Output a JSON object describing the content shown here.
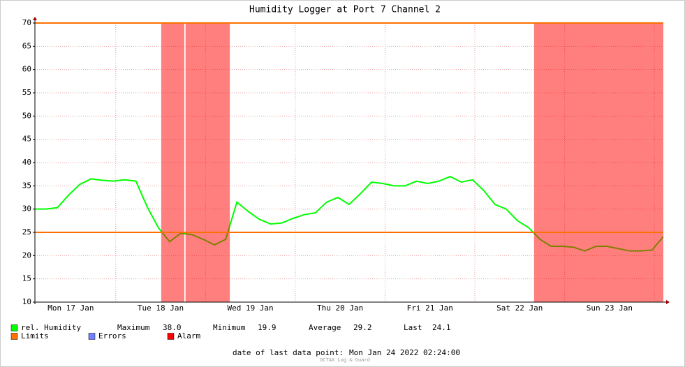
{
  "chart_data": {
    "type": "line",
    "title": "Humidity Logger at Port 7 Channel 2",
    "x": [
      "2022-01-17T02:24",
      "2022-01-17T05:24",
      "2022-01-17T08:24",
      "2022-01-17T11:24",
      "2022-01-17T14:24",
      "2022-01-17T17:24",
      "2022-01-17T20:24",
      "2022-01-17T23:24",
      "2022-01-18T02:24",
      "2022-01-18T05:24",
      "2022-01-18T08:24",
      "2022-01-18T11:24",
      "2022-01-18T14:24",
      "2022-01-18T17:24",
      "2022-01-18T20:24",
      "2022-01-18T23:24",
      "2022-01-19T02:24",
      "2022-01-19T05:24",
      "2022-01-19T08:24",
      "2022-01-19T11:24",
      "2022-01-19T14:24",
      "2022-01-19T17:24",
      "2022-01-19T20:24",
      "2022-01-19T23:24",
      "2022-01-20T02:24",
      "2022-01-20T05:24",
      "2022-01-20T08:24",
      "2022-01-20T11:24",
      "2022-01-20T14:24",
      "2022-01-20T17:24",
      "2022-01-20T20:24",
      "2022-01-20T23:24",
      "2022-01-21T02:24",
      "2022-01-21T05:24",
      "2022-01-21T08:24",
      "2022-01-21T11:24",
      "2022-01-21T14:24",
      "2022-01-21T17:24",
      "2022-01-21T20:24",
      "2022-01-21T23:24",
      "2022-01-22T02:24",
      "2022-01-22T05:24",
      "2022-01-22T08:24",
      "2022-01-22T11:24",
      "2022-01-22T14:24",
      "2022-01-22T17:24",
      "2022-01-22T20:24",
      "2022-01-22T23:24",
      "2022-01-23T02:24",
      "2022-01-23T05:24",
      "2022-01-23T08:24",
      "2022-01-23T11:24",
      "2022-01-23T14:24",
      "2022-01-23T17:24",
      "2022-01-23T20:24",
      "2022-01-23T23:24",
      "2022-01-24T02:24"
    ],
    "series": [
      {
        "name": "rel. Humidity",
        "color": "#00ff00",
        "values": [
          30.0,
          30.0,
          30.3,
          33,
          35.3,
          36.5,
          36.2,
          36,
          36.3,
          36,
          30.5,
          26,
          23,
          24.8,
          24.5,
          23.5,
          22.3,
          23.5,
          31.5,
          29.5,
          27.8,
          26.8,
          27,
          28,
          28.8,
          29.2,
          31.5,
          32.5,
          31,
          33.3,
          35.8,
          35.5,
          35,
          35,
          36,
          35.5,
          36,
          37,
          35.8,
          36.3,
          34,
          31,
          30,
          27.5,
          26,
          23.5,
          22,
          22,
          21.8,
          21,
          22,
          22,
          21.5,
          21,
          21,
          21.2,
          24.1
        ]
      }
    ],
    "limits": {
      "name": "Limits",
      "color": "#ff7000",
      "values": [
        70,
        25
      ]
    },
    "errors": {
      "name": "Errors",
      "color": "#7080ff"
    },
    "alarms": {
      "name": "Alarm",
      "color": "#ff0000",
      "periods": [
        [
          "2022-01-18T12:10",
          "2022-01-18T18:20"
        ],
        [
          "2022-01-18T18:40",
          "2022-01-19T06:30"
        ],
        [
          "2022-01-22T15:50",
          "2022-01-24T02:24"
        ]
      ]
    },
    "stats": [
      [
        "Maximum",
        "38.0"
      ],
      [
        "Minimum",
        "19.9"
      ],
      [
        "Average",
        "29.2"
      ],
      [
        "Last",
        "24.1"
      ]
    ],
    "xlim": [
      "2022-01-17T02:24",
      "2022-01-24T02:24"
    ],
    "xticks": [
      {
        "value": "2022-01-17T12:00",
        "label": "Mon 17 Jan"
      },
      {
        "value": "2022-01-18T12:00",
        "label": "Tue 18 Jan"
      },
      {
        "value": "2022-01-19T12:00",
        "label": "Wed 19 Jan"
      },
      {
        "value": "2022-01-20T12:00",
        "label": "Thu 20 Jan"
      },
      {
        "value": "2022-01-21T12:00",
        "label": "Fri 21 Jan"
      },
      {
        "value": "2022-01-22T12:00",
        "label": "Sat 22 Jan"
      },
      {
        "value": "2022-01-23T12:00",
        "label": "Sun 23 Jan"
      }
    ],
    "xgrid": [
      "2022-01-18T00:00",
      "2022-01-19T00:00",
      "2022-01-20T00:00",
      "2022-01-21T00:00",
      "2022-01-22T00:00",
      "2022-01-23T00:00",
      "2022-01-24T00:00"
    ],
    "ylim": [
      10,
      70
    ],
    "yticks": [
      10,
      15,
      20,
      25,
      30,
      35,
      40,
      45,
      50,
      55,
      60,
      65,
      70
    ],
    "grid": true,
    "footer_label": "date of last data point:",
    "footer_value": "Mon Jan 24 2022 02:24:00",
    "watermark": "OCTAX Log & Guard"
  }
}
